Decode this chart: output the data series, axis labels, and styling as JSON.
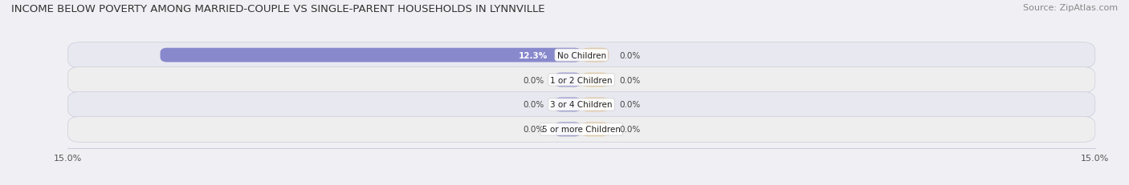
{
  "title": "INCOME BELOW POVERTY AMONG MARRIED-COUPLE VS SINGLE-PARENT HOUSEHOLDS IN LYNNVILLE",
  "source": "Source: ZipAtlas.com",
  "categories": [
    "No Children",
    "1 or 2 Children",
    "3 or 4 Children",
    "5 or more Children"
  ],
  "married_values": [
    12.3,
    0.0,
    0.0,
    0.0
  ],
  "single_values": [
    0.0,
    0.0,
    0.0,
    0.0
  ],
  "married_color": "#8888cc",
  "single_color": "#e8c898",
  "xlim": 15.0,
  "row_colors": [
    "#e8e8f0",
    "#eeeeee"
  ],
  "title_fontsize": 9.5,
  "source_fontsize": 8,
  "cat_fontsize": 7.5,
  "val_fontsize": 7.5,
  "axis_fontsize": 8,
  "legend_fontsize": 8,
  "min_bar_display": 0.8
}
